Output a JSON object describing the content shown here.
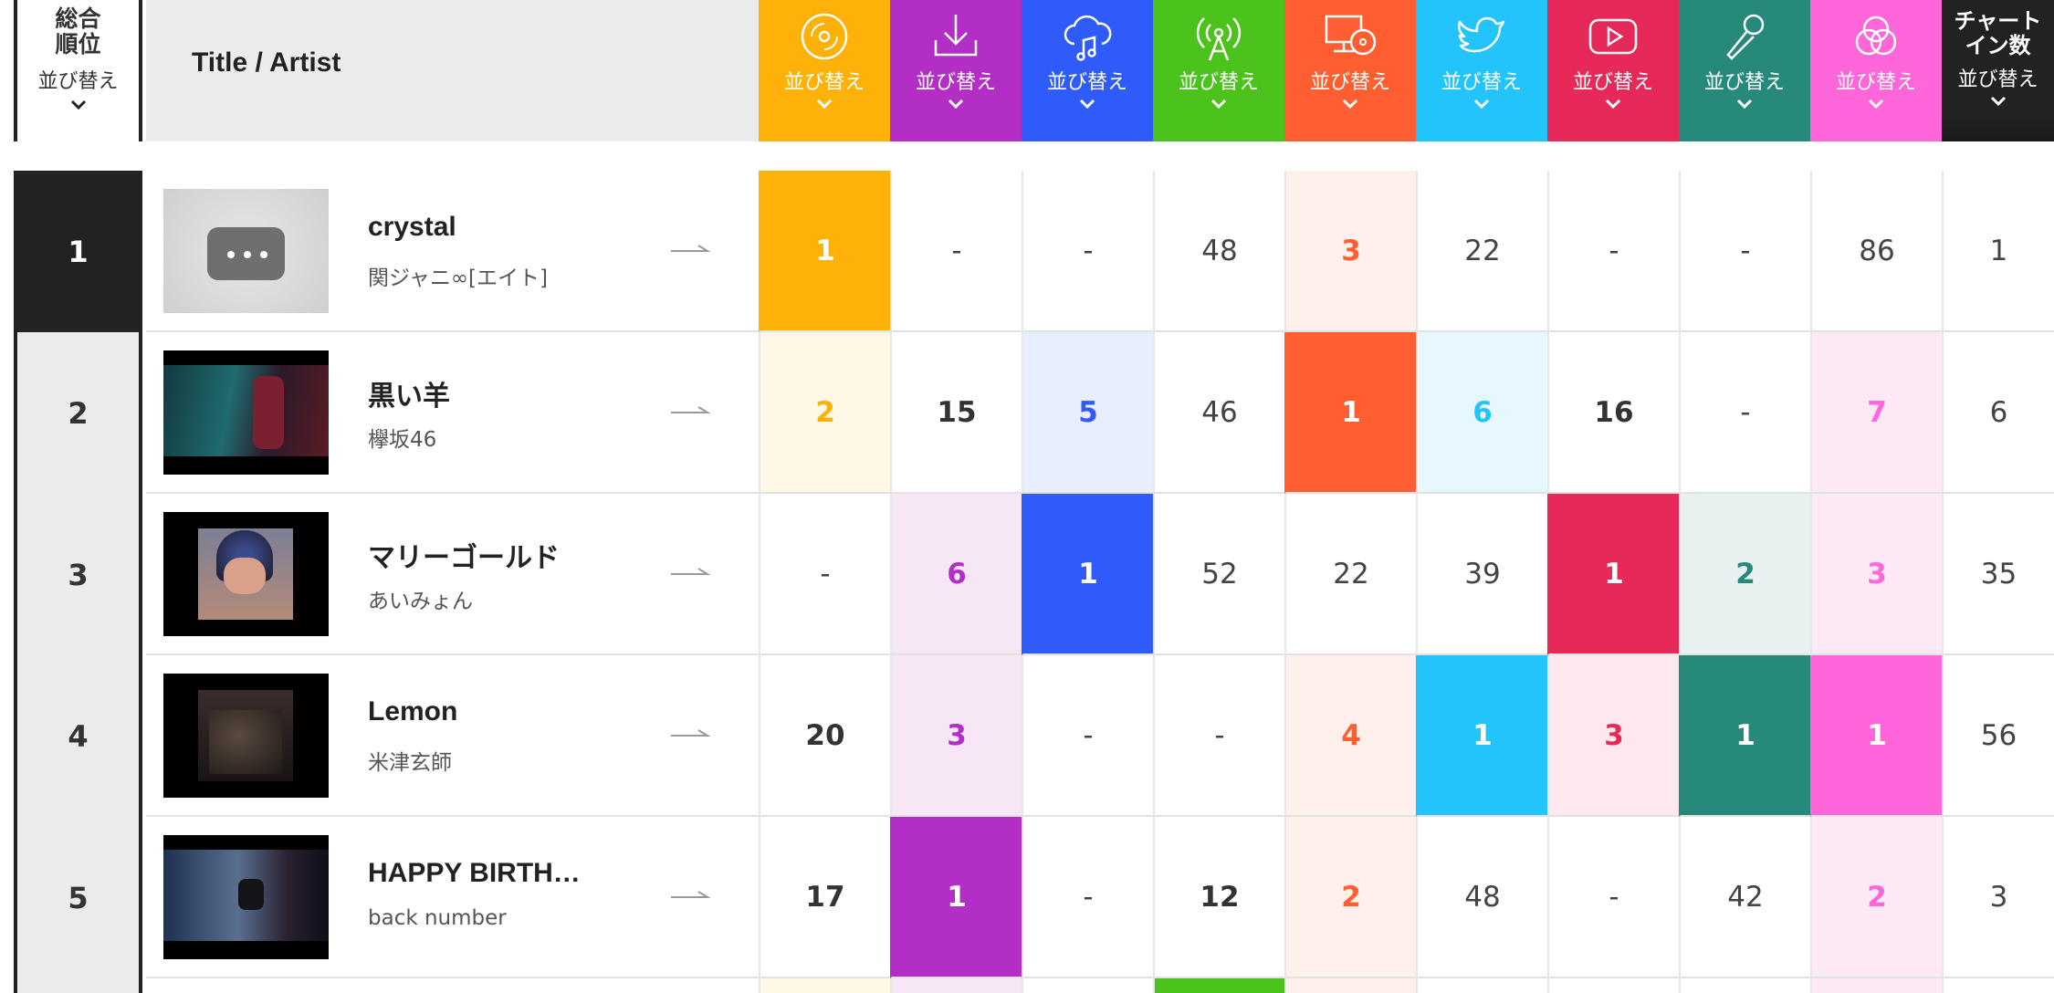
{
  "header": {
    "rank_label": "総合\n順位",
    "rank_sort": "並び替え",
    "title_label": "Title / Artist",
    "columns": [
      {
        "icon": "cd-disc-icon",
        "color": "#fdb109",
        "sort": "並び替え"
      },
      {
        "icon": "download-icon",
        "color": "#b22ec4",
        "sort": "並び替え"
      },
      {
        "icon": "cloud-music-icon",
        "color": "#2f5bfa",
        "sort": "並び替え"
      },
      {
        "icon": "radio-antenna-icon",
        "color": "#4cc21c",
        "sort": "並び替え"
      },
      {
        "icon": "pc-disc-icon",
        "color": "#ff5e30",
        "sort": "並び替え"
      },
      {
        "icon": "twitter-bird-icon",
        "color": "#22c4fb",
        "sort": "並び替え"
      },
      {
        "icon": "youtube-play-icon",
        "color": "#e72959",
        "sort": "並び替え"
      },
      {
        "icon": "microphone-icon",
        "color": "#26897a",
        "sort": "並び替え"
      },
      {
        "icon": "venn-circles-icon",
        "color": "#ff66d9",
        "sort": "並び替え"
      },
      {
        "icon": "",
        "color": "#222222",
        "sort": "並び替え",
        "label": "チャート\nイン数"
      }
    ]
  },
  "rows": [
    {
      "rank": "1",
      "song": "crystal",
      "artist": "関ジャニ∞[エイト]",
      "thumb": "placeholder",
      "cells": [
        "1",
        "-",
        "-",
        "48",
        "3",
        "22",
        "-",
        "-",
        "86",
        "1"
      ]
    },
    {
      "rank": "2",
      "song": "黒い羊",
      "artist": "欅坂46",
      "thumb": "video",
      "cells": [
        "2",
        "15",
        "5",
        "46",
        "1",
        "6",
        "16",
        "-",
        "7",
        "6"
      ]
    },
    {
      "rank": "3",
      "song": "マリーゴールド",
      "artist": "あいみょん",
      "thumb": "portrait",
      "cells": [
        "-",
        "6",
        "1",
        "52",
        "22",
        "39",
        "1",
        "2",
        "3",
        "35"
      ]
    },
    {
      "rank": "4",
      "song": "Lemon",
      "artist": "米津玄師",
      "thumb": "group",
      "cells": [
        "20",
        "3",
        "-",
        "-",
        "4",
        "1",
        "3",
        "1",
        "1",
        "56"
      ]
    },
    {
      "rank": "5",
      "song": "HAPPY BIRTH…",
      "artist": "back number",
      "thumb": "video2",
      "cells": [
        "17",
        "1",
        "-",
        "12",
        "2",
        "48",
        "-",
        "42",
        "2",
        "3"
      ]
    }
  ],
  "styles": {
    "rank_text": "#222222",
    "tint_cd": "#fff8e6",
    "tint_dl": "#f7e6f6",
    "tint_stream": "#e8eefe",
    "tint_pc": "#fff0ec",
    "tint_tw": "#e6f7fe",
    "tint_yt": "#fde8ed",
    "tint_karaoke": "#e7f1ef",
    "tint_venn": "#fde8f6"
  }
}
